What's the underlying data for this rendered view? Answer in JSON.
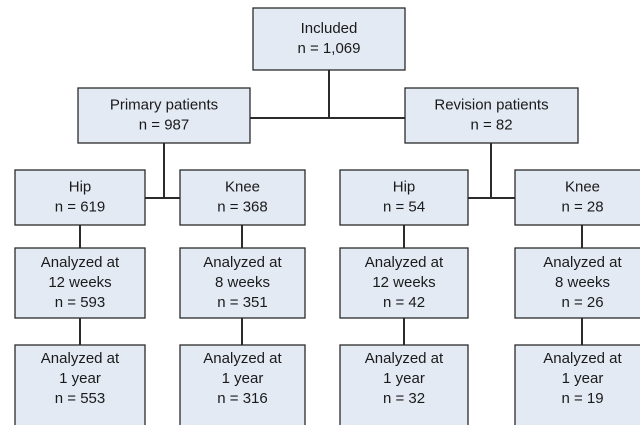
{
  "nodes": [
    {
      "lines": [
        "Included",
        "n = 1,069"
      ]
    },
    {
      "lines": [
        "Primary patients",
        "n = 987"
      ]
    },
    {
      "lines": [
        "Revision patients",
        "n = 82"
      ]
    },
    {
      "lines": [
        "Hip",
        "n = 619"
      ]
    },
    {
      "lines": [
        "Knee",
        "n = 368"
      ]
    },
    {
      "lines": [
        "Hip",
        "n = 54"
      ]
    },
    {
      "lines": [
        "Knee",
        "n = 28"
      ]
    },
    {
      "lines": [
        "Analyzed at",
        "12 weeks",
        "n = 593"
      ]
    },
    {
      "lines": [
        "Analyzed at",
        "8 weeks",
        "n = 351"
      ]
    },
    {
      "lines": [
        "Analyzed at",
        "12 weeks",
        "n = 42"
      ]
    },
    {
      "lines": [
        "Analyzed at",
        "8 weeks",
        "n = 26"
      ]
    },
    {
      "lines": [
        "Analyzed at",
        "1 year",
        "n = 553"
      ]
    },
    {
      "lines": [
        "Analyzed at",
        "1 year",
        "n = 316"
      ]
    },
    {
      "lines": [
        "Analyzed at",
        "1 year",
        "n = 32"
      ]
    },
    {
      "lines": [
        "Analyzed at",
        "1 year",
        "n = 19"
      ]
    }
  ]
}
